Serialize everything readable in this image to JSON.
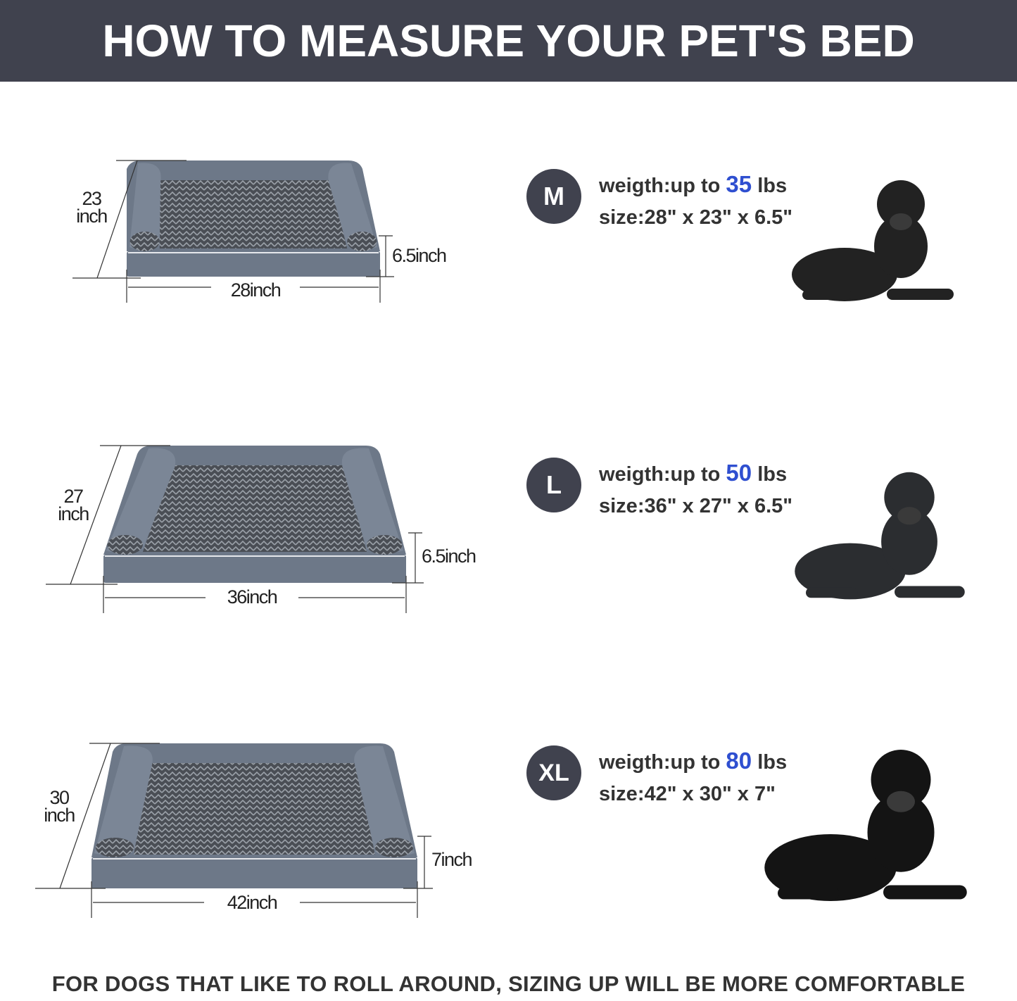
{
  "header": {
    "title": "HOW TO MEASURE YOUR PET'S BED"
  },
  "sizes": [
    {
      "badge": "M",
      "weight_prefix": "weigth:up to",
      "weight_value": "35",
      "weight_unit": "lbs",
      "size_text": "size:28\" x 23\" x 6.5\"",
      "depth_label_num": "23",
      "depth_label_unit": "inch",
      "width_label": "28inch",
      "height_label": "6.5inch",
      "dog": "french-bulldog"
    },
    {
      "badge": "L",
      "weight_prefix": "weigth:up to",
      "weight_value": "50",
      "weight_unit": "lbs",
      "size_text": "size:36\" x 27\" x 6.5\"",
      "depth_label_num": "27",
      "depth_label_unit": "inch",
      "width_label": "36inch",
      "height_label": "6.5inch",
      "dog": "cocker-spaniel"
    },
    {
      "badge": "XL",
      "weight_prefix": "weigth:up to",
      "weight_value": "80",
      "weight_unit": "lbs",
      "size_text": "size:42\" x 30\" x 7\"",
      "depth_label_num": "30",
      "depth_label_unit": "inch",
      "width_label": "42inch",
      "height_label": "7inch",
      "dog": "black-labrador"
    }
  ],
  "footer": {
    "text": "FOR DOGS THAT LIKE TO ROLL AROUND, SIZING UP WILL BE MORE COMFORTABLE"
  },
  "colors": {
    "header_bg": "#40424e",
    "accent_number": "#2f4fd0",
    "bed_gray": "#6d7888"
  }
}
